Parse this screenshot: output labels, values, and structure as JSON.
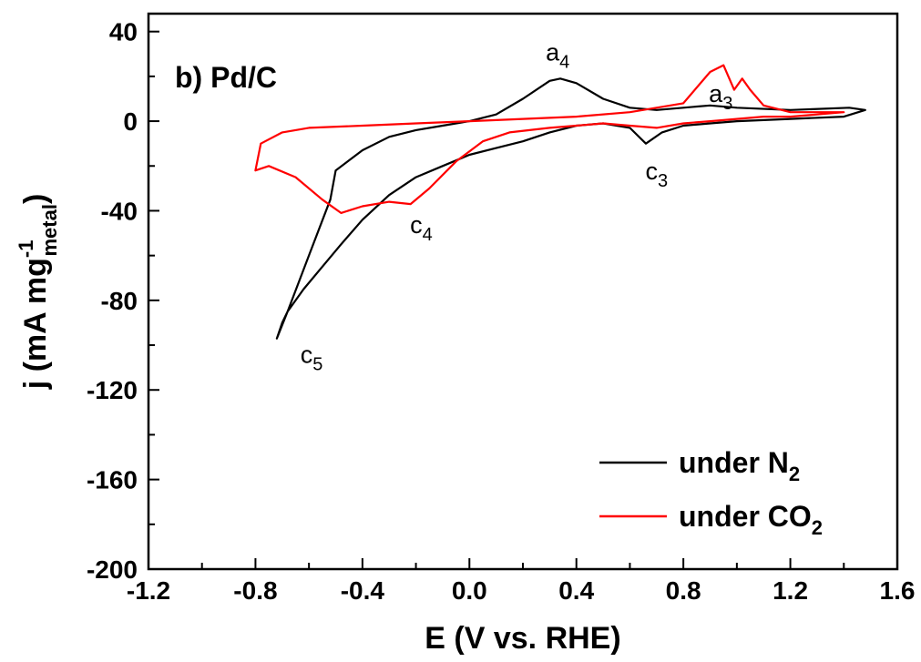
{
  "chart_data": {
    "type": "line",
    "panel_label": "b) Pd/C",
    "xlabel": "E (V vs. RHE)",
    "ylabel": {
      "main": "j (mA mg",
      "sup": "-1",
      "sub": "metal",
      "close": ")"
    },
    "xlim": [
      -1.2,
      1.6
    ],
    "ylim": [
      -200,
      48
    ],
    "x_ticks": [
      -1.2,
      -0.8,
      -0.4,
      0.0,
      0.4,
      0.8,
      1.2,
      1.6
    ],
    "x_tick_labels": [
      "-1.2",
      "-0.8",
      "-0.4",
      "0.0",
      "0.4",
      "0.8",
      "1.2",
      "1.6"
    ],
    "y_ticks": [
      -200,
      -160,
      -120,
      -80,
      -40,
      0,
      40
    ],
    "y_tick_labels": [
      "-200",
      "-160",
      "-120",
      "-80",
      "-40",
      "0",
      "40"
    ],
    "grid": false,
    "legend_position": "bottom-right",
    "colors": {
      "n2": "#000000",
      "co2": "#ff0000"
    },
    "series": [
      {
        "name": "under N₂",
        "label_main": "under N",
        "label_sub": "2",
        "color": "#000000",
        "x": [
          -0.72,
          -0.7,
          -0.68,
          -0.62,
          -0.55,
          -0.48,
          -0.4,
          -0.3,
          -0.2,
          -0.1,
          0.0,
          0.1,
          0.2,
          0.3,
          0.4,
          0.5,
          0.6,
          0.66,
          0.72,
          0.8,
          0.9,
          1.0,
          1.2,
          1.4,
          1.48,
          1.42,
          1.2,
          1.0,
          0.9,
          0.8,
          0.7,
          0.6,
          0.5,
          0.4,
          0.34,
          0.3,
          0.2,
          0.1,
          0.0,
          -0.1,
          -0.2,
          -0.3,
          -0.4,
          -0.5,
          -0.52,
          -0.6,
          -0.68,
          -0.72
        ],
        "y": [
          -97,
          -90,
          -85,
          -75,
          -65,
          -55,
          -44,
          -33,
          -25,
          -20,
          -15,
          -12,
          -9,
          -5,
          -2,
          -1,
          -3,
          -10,
          -5,
          -2,
          -1,
          0,
          1,
          2,
          5,
          6,
          5,
          6,
          7,
          6,
          5,
          6,
          10,
          17,
          19,
          18,
          10,
          3,
          0,
          -2,
          -4,
          -7,
          -13,
          -22,
          -35,
          -60,
          -85,
          -97
        ]
      },
      {
        "name": "under CO₂",
        "label_main": "under CO",
        "label_sub": "2",
        "color": "#ff0000",
        "x": [
          -0.8,
          -0.75,
          -0.65,
          -0.55,
          -0.48,
          -0.4,
          -0.3,
          -0.22,
          -0.15,
          -0.05,
          0.05,
          0.15,
          0.3,
          0.4,
          0.5,
          0.6,
          0.7,
          0.8,
          0.9,
          1.0,
          1.1,
          1.2,
          1.3,
          1.4,
          1.35,
          1.2,
          1.1,
          1.05,
          1.02,
          0.99,
          0.95,
          0.9,
          0.8,
          0.6,
          0.4,
          0.2,
          0.0,
          -0.2,
          -0.4,
          -0.6,
          -0.7,
          -0.78,
          -0.8
        ],
        "y": [
          -22,
          -20,
          -25,
          -35,
          -41,
          -38,
          -36,
          -37,
          -30,
          -18,
          -9,
          -5,
          -3,
          -2,
          -1,
          -2,
          -3,
          -1,
          0,
          1,
          2,
          2,
          3,
          4,
          4,
          4,
          7,
          14,
          19,
          14,
          25,
          22,
          8,
          4,
          2,
          1,
          0,
          -1,
          -2,
          -3,
          -5,
          -10,
          -22
        ]
      }
    ],
    "annotations": [
      {
        "base": "a",
        "sub": "4",
        "x": 0.33,
        "y": 27
      },
      {
        "base": "a",
        "sub": "3",
        "x": 0.94,
        "y": 8.5
      },
      {
        "base": "c",
        "sub": "3",
        "x": 0.7,
        "y": -26
      },
      {
        "base": "c",
        "sub": "4",
        "x": -0.18,
        "y": -50
      },
      {
        "base": "c",
        "sub": "5",
        "x": -0.59,
        "y": -108
      }
    ]
  }
}
